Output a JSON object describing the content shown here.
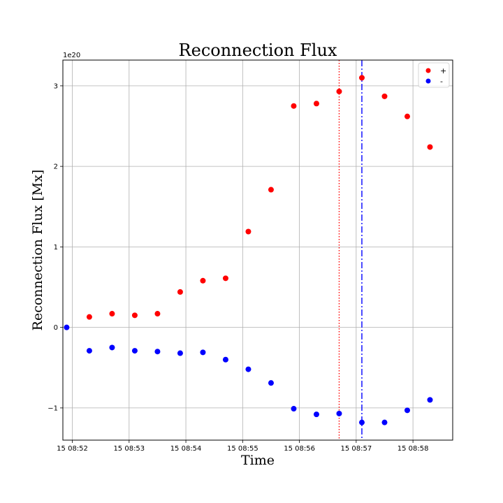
{
  "chart_data": {
    "type": "scatter",
    "title": "Reconnection Flux",
    "xlabel": "Time",
    "ylabel": "Reconnection Flux [Mx]",
    "y_offset_text": "1e20",
    "xlim": [
      "2000-01-15 08:51:50",
      "2000-01-15 08:58:42"
    ],
    "ylim": [
      -1.4,
      3.32
    ],
    "x_ticks": [
      {
        "value": "2000-01-15 08:52:00",
        "label": "15 08:52"
      },
      {
        "value": "2000-01-15 08:53:00",
        "label": "15 08:53"
      },
      {
        "value": "2000-01-15 08:54:00",
        "label": "15 08:54"
      },
      {
        "value": "2000-01-15 08:55:00",
        "label": "15 08:55"
      },
      {
        "value": "2000-01-15 08:56:00",
        "label": "15 08:56"
      },
      {
        "value": "2000-01-15 08:57:00",
        "label": "15 08:57"
      },
      {
        "value": "2000-01-15 08:58:00",
        "label": "15 08:58"
      }
    ],
    "y_ticks": [
      {
        "value": -1,
        "label": "−1"
      },
      {
        "value": 0,
        "label": "0"
      },
      {
        "value": 1,
        "label": "1"
      },
      {
        "value": 2,
        "label": "2"
      },
      {
        "value": 3,
        "label": "3"
      }
    ],
    "grid": true,
    "legend_position": "top-right",
    "series": [
      {
        "name": "+",
        "color": "#ff0000",
        "points": [
          {
            "x": "2000-01-15 08:52:18",
            "y": 0.13
          },
          {
            "x": "2000-01-15 08:52:42",
            "y": 0.17
          },
          {
            "x": "2000-01-15 08:53:06",
            "y": 0.15
          },
          {
            "x": "2000-01-15 08:53:30",
            "y": 0.17
          },
          {
            "x": "2000-01-15 08:53:54",
            "y": 0.44
          },
          {
            "x": "2000-01-15 08:54:18",
            "y": 0.58
          },
          {
            "x": "2000-01-15 08:54:42",
            "y": 0.61
          },
          {
            "x": "2000-01-15 08:55:06",
            "y": 1.19
          },
          {
            "x": "2000-01-15 08:55:30",
            "y": 1.71
          },
          {
            "x": "2000-01-15 08:55:54",
            "y": 2.75
          },
          {
            "x": "2000-01-15 08:56:18",
            "y": 2.78
          },
          {
            "x": "2000-01-15 08:56:42",
            "y": 2.93
          },
          {
            "x": "2000-01-15 08:57:06",
            "y": 3.1
          },
          {
            "x": "2000-01-15 08:57:30",
            "y": 2.87
          },
          {
            "x": "2000-01-15 08:57:54",
            "y": 2.62
          },
          {
            "x": "2000-01-15 08:58:18",
            "y": 2.24
          }
        ]
      },
      {
        "name": "-",
        "color": "#0000ff",
        "points": [
          {
            "x": "2000-01-15 08:51:54",
            "y": 0.0
          },
          {
            "x": "2000-01-15 08:52:18",
            "y": -0.29
          },
          {
            "x": "2000-01-15 08:52:42",
            "y": -0.25
          },
          {
            "x": "2000-01-15 08:53:06",
            "y": -0.29
          },
          {
            "x": "2000-01-15 08:53:30",
            "y": -0.3
          },
          {
            "x": "2000-01-15 08:53:54",
            "y": -0.32
          },
          {
            "x": "2000-01-15 08:54:18",
            "y": -0.31
          },
          {
            "x": "2000-01-15 08:54:42",
            "y": -0.4
          },
          {
            "x": "2000-01-15 08:55:06",
            "y": -0.52
          },
          {
            "x": "2000-01-15 08:55:30",
            "y": -0.69
          },
          {
            "x": "2000-01-15 08:55:54",
            "y": -1.01
          },
          {
            "x": "2000-01-15 08:56:18",
            "y": -1.08
          },
          {
            "x": "2000-01-15 08:56:42",
            "y": -1.07
          },
          {
            "x": "2000-01-15 08:57:06",
            "y": -1.18
          },
          {
            "x": "2000-01-15 08:57:30",
            "y": -1.18
          },
          {
            "x": "2000-01-15 08:57:54",
            "y": -1.03
          },
          {
            "x": "2000-01-15 08:58:18",
            "y": -0.9
          }
        ]
      }
    ],
    "vertical_lines": [
      {
        "x": "2000-01-15 08:56:42",
        "color": "#ff0000",
        "style": "dotted"
      },
      {
        "x": "2000-01-15 08:57:06",
        "color": "#0000ff",
        "style": "dashdot"
      }
    ]
  }
}
